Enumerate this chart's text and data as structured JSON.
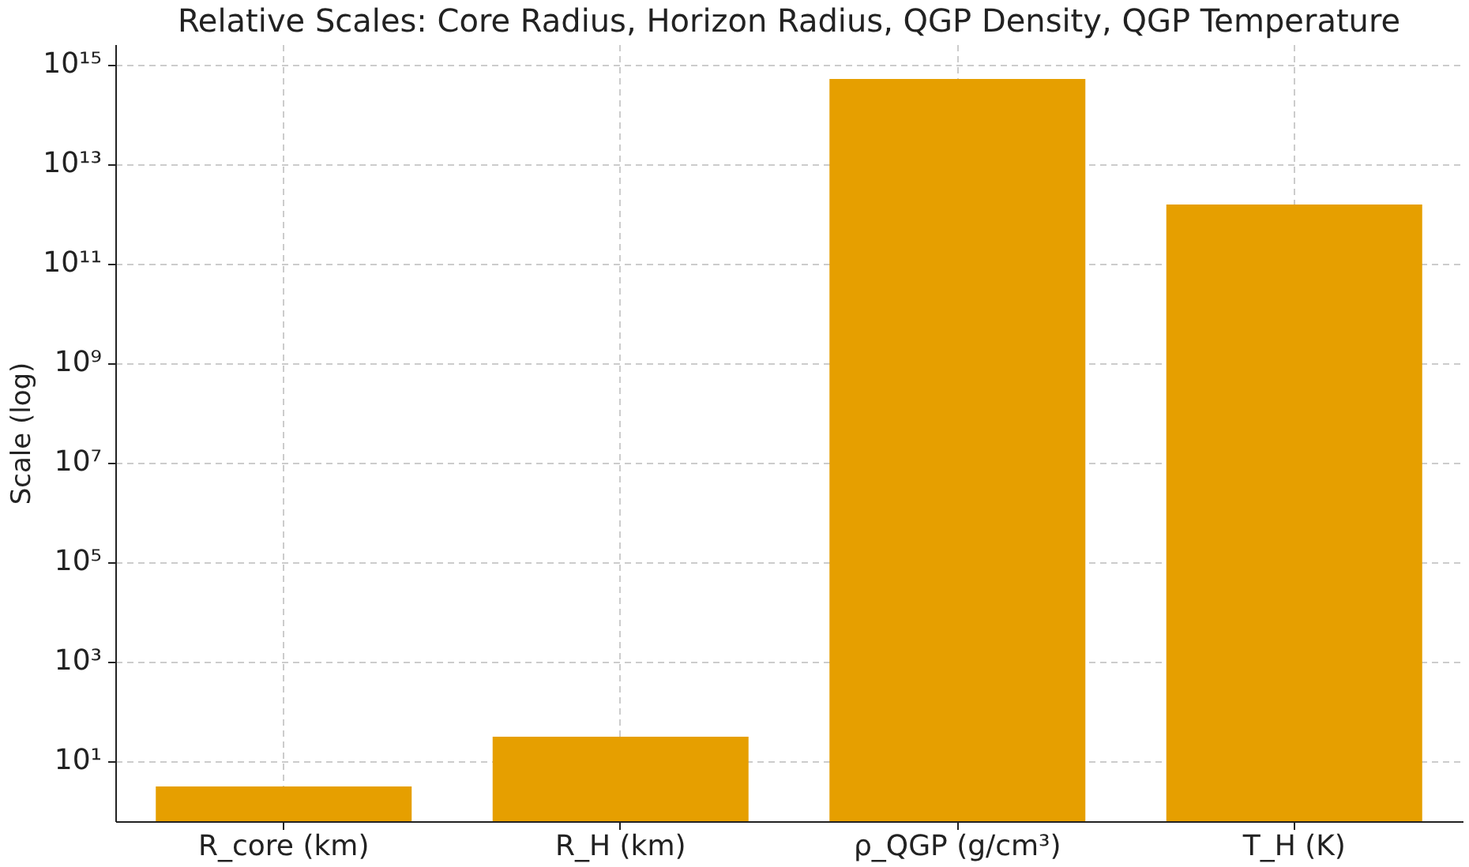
{
  "chart_data": {
    "type": "bar",
    "title": "Relative Scales: Core Radius, Horizon Radius, QGP Density, QGP Temperature",
    "ylabel": "Scale (log)",
    "categories": [
      "R_core (km)",
      "R_H (km)",
      "ρ_QGP (g/cm³)",
      "T_H (K)"
    ],
    "values": [
      3,
      30,
      500000000000000.0,
      1500000000000.0
    ],
    "color": "#e69f00",
    "log": true,
    "ylim": [
      0.6,
      2500000000000000.0
    ],
    "yticks": [
      {
        "value": 10,
        "label": "10¹"
      },
      {
        "value": 1000,
        "label": "10³"
      },
      {
        "value": 100000.0,
        "label": "10⁵"
      },
      {
        "value": 10000000.0,
        "label": "10⁷"
      },
      {
        "value": 1000000000.0,
        "label": "10⁹"
      },
      {
        "value": 100000000000.0,
        "label": "10¹¹"
      },
      {
        "value": 10000000000000.0,
        "label": "10¹³"
      },
      {
        "value": 1000000000000000.0,
        "label": "10¹⁵"
      }
    ],
    "grid": true
  }
}
